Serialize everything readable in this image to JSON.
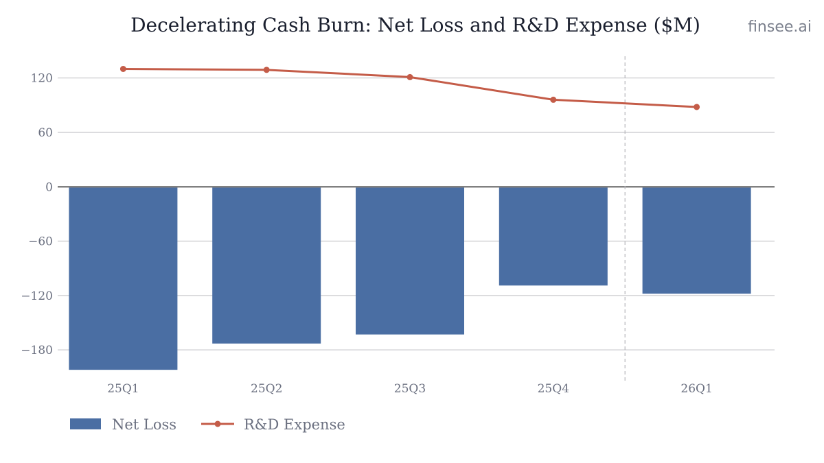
{
  "header": {
    "title": "Decelerating Cash Burn: Net Loss and R&D Expense ($M)",
    "watermark": "finsee.ai"
  },
  "colors": {
    "net_loss": "#4a6ea3",
    "rd_expense": "#c45c48",
    "grid": "#c8c8cc",
    "zero_line": "#808080",
    "divider": "#b8b8bc"
  },
  "chart_data": {
    "type": "bar",
    "title": "Decelerating Cash Burn: Net Loss and R&D Expense ($M)",
    "xlabel": "",
    "ylabel": "",
    "categories": [
      "25Q1",
      "25Q2",
      "25Q3",
      "25Q4",
      "26Q1"
    ],
    "series": [
      {
        "name": "Net Loss",
        "type": "bar",
        "values": [
          -202,
          -173,
          -163,
          -109,
          -118
        ]
      },
      {
        "name": "R&D Expense",
        "type": "line",
        "values": [
          130,
          129,
          121,
          96,
          88
        ]
      }
    ],
    "ylim": [
      -214,
      144
    ],
    "yticks": [
      120,
      60,
      0,
      -60,
      -120,
      -180
    ],
    "ytick_labels": [
      "120",
      "60",
      "0",
      "−60",
      "−120",
      "−180"
    ],
    "divider_after_category": "25Q4",
    "grid": true,
    "legend_position": "bottom-left"
  }
}
